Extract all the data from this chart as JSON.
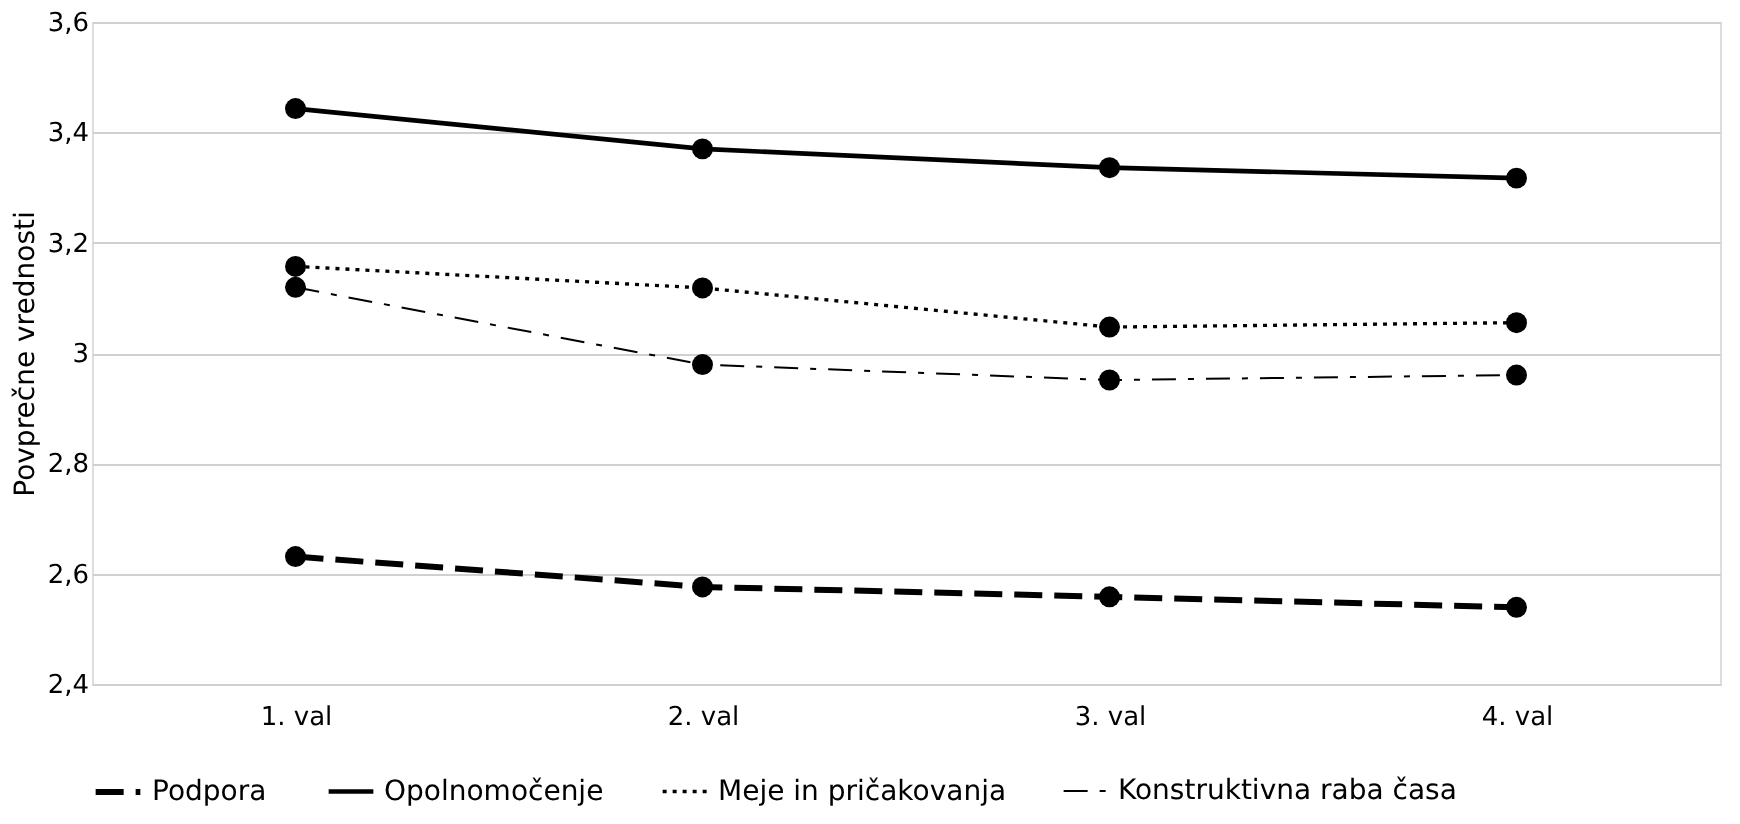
{
  "chart_data": {
    "type": "line",
    "ylabel": "Povprečne vrednosti",
    "categories": [
      "1. val",
      "2. val",
      "3. val",
      "4. val"
    ],
    "series": [
      {
        "name": "Podpora",
        "color": "#000000",
        "line_style": "dashed",
        "values": [
          2.631,
          2.576,
          2.558,
          2.539
        ]
      },
      {
        "name": "Opolnomočenje",
        "color": "#000000",
        "line_style": "solid",
        "values": [
          3.443,
          3.37,
          3.336,
          3.317
        ]
      },
      {
        "name": "Meje in pričakovanja",
        "color": "#000000",
        "line_style": "dotted",
        "values": [
          3.157,
          3.118,
          3.047,
          3.055
        ]
      },
      {
        "name": "Konstruktivna raba časa",
        "color": "#000000",
        "line_style": "dashdot",
        "values": [
          3.119,
          2.979,
          2.951,
          2.96
        ]
      }
    ],
    "ylim": [
      2.4,
      3.6
    ],
    "yticks": [
      {
        "value": 2.4,
        "label": "2,4"
      },
      {
        "value": 2.6,
        "label": "2,6"
      },
      {
        "value": 2.8,
        "label": "2,8"
      },
      {
        "value": 3,
        "label": "3"
      },
      {
        "value": 3.2,
        "label": "3,2"
      },
      {
        "value": 3.4,
        "label": "3,4"
      },
      {
        "value": 3.6,
        "label": "3,6"
      }
    ],
    "grid": "y",
    "legend": "bottom",
    "marker": "circle"
  }
}
